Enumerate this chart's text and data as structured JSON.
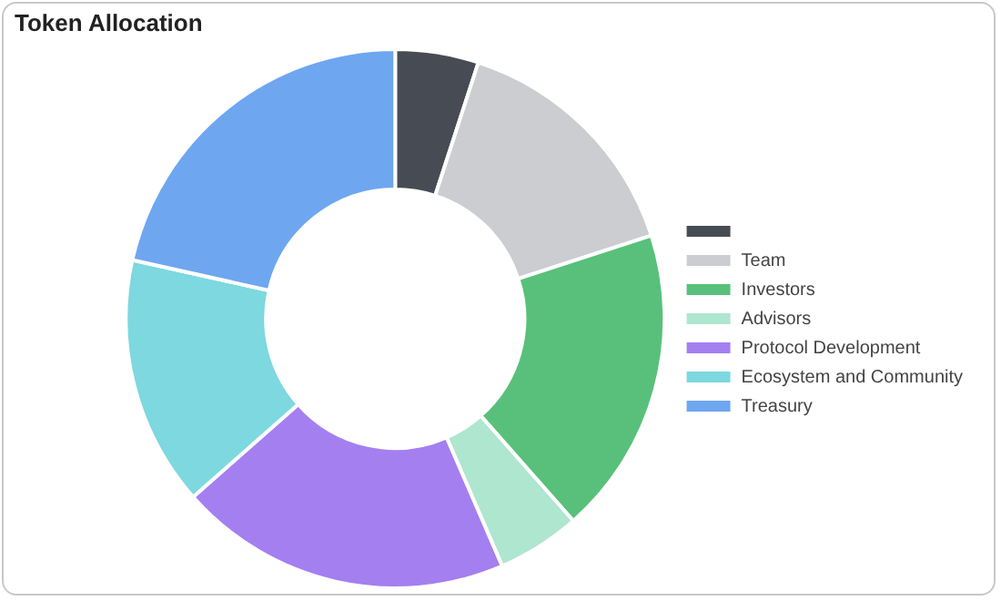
{
  "chart_data": {
    "type": "donut",
    "title": "Token Allocation",
    "categories": [
      null,
      "Team",
      "Investors",
      "Advisors",
      "Protocol Development",
      "Ecosystem and Community",
      "Treasury"
    ],
    "values": [
      5,
      15,
      18.5,
      5,
      20,
      15,
      21.5
    ],
    "colors": [
      "#474b54",
      "#cbcdd1",
      "#58c07a",
      "#aee6cf",
      "#a47ff0",
      "#7dd8df",
      "#6ea6f0"
    ],
    "legend": "right"
  }
}
